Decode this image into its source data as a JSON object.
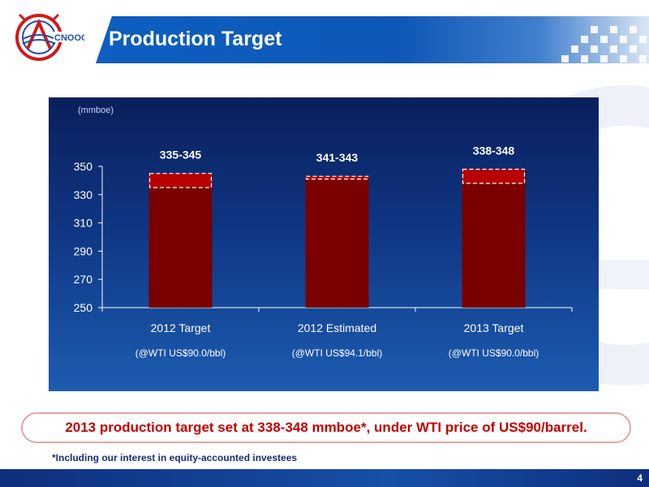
{
  "header": {
    "title": "Production Target"
  },
  "logo": {
    "icon": "cnooc-logo-icon",
    "text": "CNOOC"
  },
  "colors": {
    "title_bar": "#0e57b6",
    "bar": "#7a0000",
    "bar_range": "#b80000",
    "callout_text": "#c00000",
    "footnote_text": "#1b2a7a"
  },
  "chart_data": {
    "type": "bar",
    "unit": "(mmboe)",
    "categories": [
      "2012 Target",
      "2012 Estimated",
      "2013 Target"
    ],
    "subcategories": [
      "(@WTI US$90.0/bbl)",
      "(@WTI US$94.1/bbl)",
      "(@WTI US$90.0/bbl)"
    ],
    "ranges": [
      [
        335,
        345
      ],
      [
        341,
        343
      ],
      [
        338,
        348
      ]
    ],
    "data_labels": [
      "335-345",
      "341-343",
      "338-348"
    ],
    "ylim": [
      250,
      350
    ],
    "yticks": [
      250,
      270,
      290,
      310,
      330,
      350
    ],
    "ytick_labels": [
      "250",
      "270",
      "290",
      "310",
      "330",
      "350"
    ],
    "grid": false,
    "legend": "none"
  },
  "callout": {
    "text": "2013 production target set at 338-348 mmboe*, under WTI price of US$90/barrel."
  },
  "footnote": "*Including our interest in equity-accounted investees",
  "page_number": "4"
}
